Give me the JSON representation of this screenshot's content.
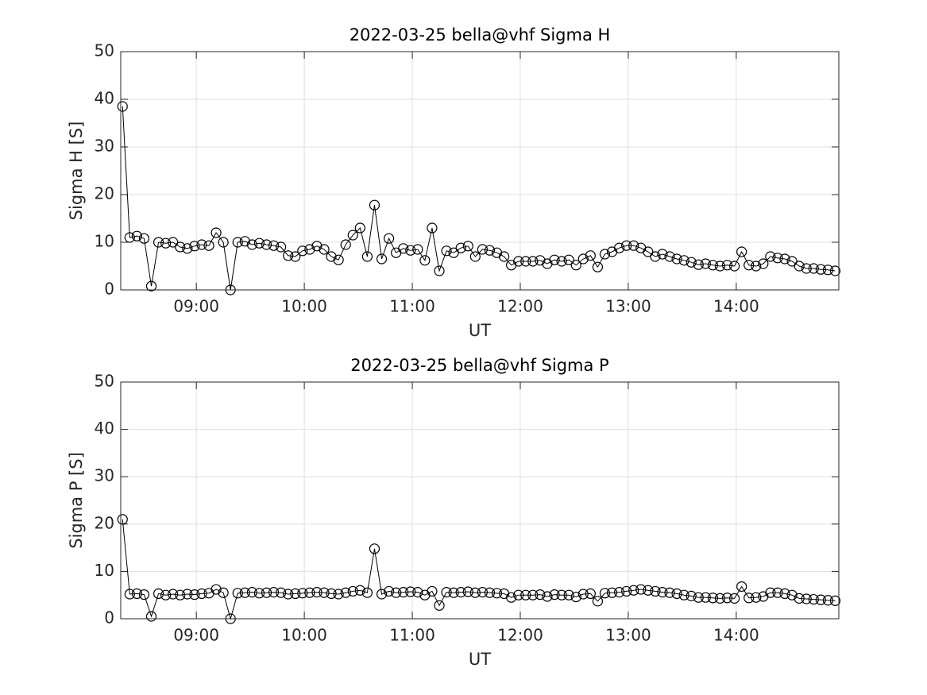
{
  "chart_data": [
    {
      "type": "line",
      "title": "2022-03-25  bella@vhf Sigma H",
      "xlabel": "UT",
      "ylabel": "Sigma H [S]",
      "color": "#000000",
      "marker": "o",
      "grid": true,
      "x": [
        "08:19",
        "08:23",
        "08:27",
        "08:31",
        "08:35",
        "08:39",
        "08:43",
        "08:47",
        "08:51",
        "08:55",
        "08:59",
        "09:03",
        "09:07",
        "09:11",
        "09:15",
        "09:19",
        "09:23",
        "09:27",
        "09:31",
        "09:35",
        "09:39",
        "09:43",
        "09:47",
        "09:51",
        "09:55",
        "09:59",
        "10:03",
        "10:07",
        "10:11",
        "10:15",
        "10:19",
        "10:23",
        "10:27",
        "10:31",
        "10:35",
        "10:39",
        "10:43",
        "10:47",
        "10:51",
        "10:55",
        "10:59",
        "11:03",
        "11:07",
        "11:11",
        "11:15",
        "11:19",
        "11:23",
        "11:27",
        "11:31",
        "11:35",
        "11:39",
        "11:43",
        "11:47",
        "11:51",
        "11:55",
        "11:59",
        "12:03",
        "12:07",
        "12:11",
        "12:15",
        "12:19",
        "12:23",
        "12:27",
        "12:31",
        "12:35",
        "12:39",
        "12:43",
        "12:47",
        "12:51",
        "12:55",
        "12:59",
        "13:03",
        "13:07",
        "13:11",
        "13:15",
        "13:19",
        "13:23",
        "13:27",
        "13:31",
        "13:35",
        "13:39",
        "13:43",
        "13:47",
        "13:51",
        "13:55",
        "13:59",
        "14:03",
        "14:07",
        "14:11",
        "14:15",
        "14:19",
        "14:23",
        "14:27",
        "14:31",
        "14:35",
        "14:39",
        "14:43",
        "14:47",
        "14:51",
        "14:55"
      ],
      "values": [
        38.5,
        11,
        11.3,
        10.8,
        0.8,
        10,
        9.8,
        10,
        9,
        8.7,
        9.2,
        9.5,
        9.3,
        12,
        10,
        0,
        10,
        10.2,
        9.5,
        9.8,
        9.5,
        9.3,
        9,
        7.2,
        7,
        8.2,
        8.5,
        9.2,
        8.5,
        7,
        6.3,
        9.5,
        11.5,
        13,
        7,
        17.8,
        6.5,
        10.8,
        7.8,
        8.7,
        8.3,
        8.5,
        6.2,
        13,
        4,
        8.2,
        7.8,
        8.8,
        9.2,
        7,
        8.5,
        8.3,
        7.8,
        7,
        5.2,
        6,
        6,
        6,
        6.2,
        5.5,
        6.3,
        6,
        6.3,
        5.2,
        6.5,
        7.2,
        4.8,
        7.5,
        8,
        8.8,
        9.3,
        9.3,
        8.8,
        8,
        7,
        7.5,
        7,
        6.5,
        6.2,
        5.8,
        5.3,
        5.5,
        5.2,
        5,
        5.2,
        5,
        8,
        5.2,
        5,
        5.5,
        7,
        6.7,
        6.5,
        6,
        5,
        4.5,
        4.5,
        4.3,
        4.2,
        4
      ],
      "xlim": [
        "08:18",
        "14:57"
      ],
      "xticks": [
        "09:00",
        "10:00",
        "11:00",
        "12:00",
        "13:00",
        "14:00"
      ],
      "ylim": [
        0,
        50
      ],
      "yticks": [
        0,
        10,
        20,
        30,
        40,
        50
      ]
    },
    {
      "type": "line",
      "title": "2022-03-25  bella@vhf Sigma P",
      "xlabel": "UT",
      "ylabel": "Sigma P [S]",
      "color": "#000000",
      "marker": "o",
      "grid": true,
      "x": [
        "08:19",
        "08:23",
        "08:27",
        "08:31",
        "08:35",
        "08:39",
        "08:43",
        "08:47",
        "08:51",
        "08:55",
        "08:59",
        "09:03",
        "09:07",
        "09:11",
        "09:15",
        "09:19",
        "09:23",
        "09:27",
        "09:31",
        "09:35",
        "09:39",
        "09:43",
        "09:47",
        "09:51",
        "09:55",
        "09:59",
        "10:03",
        "10:07",
        "10:11",
        "10:15",
        "10:19",
        "10:23",
        "10:27",
        "10:31",
        "10:35",
        "10:39",
        "10:43",
        "10:47",
        "10:51",
        "10:55",
        "10:59",
        "11:03",
        "11:07",
        "11:11",
        "11:15",
        "11:19",
        "11:23",
        "11:27",
        "11:31",
        "11:35",
        "11:39",
        "11:43",
        "11:47",
        "11:51",
        "11:55",
        "11:59",
        "12:03",
        "12:07",
        "12:11",
        "12:15",
        "12:19",
        "12:23",
        "12:27",
        "12:31",
        "12:35",
        "12:39",
        "12:43",
        "12:47",
        "12:51",
        "12:55",
        "12:59",
        "13:03",
        "13:07",
        "13:11",
        "13:15",
        "13:19",
        "13:23",
        "13:27",
        "13:31",
        "13:35",
        "13:39",
        "13:43",
        "13:47",
        "13:51",
        "13:55",
        "13:59",
        "14:03",
        "14:07",
        "14:11",
        "14:15",
        "14:19",
        "14:23",
        "14:27",
        "14:31",
        "14:35",
        "14:39",
        "14:43",
        "14:47",
        "14:51",
        "14:55"
      ],
      "values": [
        21,
        5.2,
        5.3,
        5.1,
        0.5,
        5.3,
        5,
        5.2,
        5,
        5.2,
        5.1,
        5.3,
        5.4,
        6.2,
        5.5,
        0,
        5.4,
        5.5,
        5.6,
        5.4,
        5.5,
        5.6,
        5.5,
        5.2,
        5.3,
        5.4,
        5.5,
        5.6,
        5.5,
        5.3,
        5.2,
        5.5,
        5.8,
        6,
        5.5,
        14.8,
        5.2,
        5.8,
        5.5,
        5.6,
        5.7,
        5.6,
        5,
        5.8,
        2.8,
        5.6,
        5.5,
        5.6,
        5.7,
        5.5,
        5.6,
        5.5,
        5.4,
        5.3,
        4.5,
        5,
        5,
        5,
        5.1,
        4.7,
        5.1,
        5,
        5,
        4.6,
        5.2,
        5.3,
        3.7,
        5.4,
        5.5,
        5.6,
        5.8,
        6,
        6.2,
        6,
        5.8,
        5.6,
        5.5,
        5.3,
        5,
        4.8,
        4.5,
        4.5,
        4.4,
        4.3,
        4.4,
        4.3,
        6.8,
        4.4,
        4.5,
        4.7,
        5.5,
        5.5,
        5.3,
        5,
        4.3,
        4.2,
        4.1,
        4,
        3.9,
        3.8
      ],
      "xlim": [
        "08:18",
        "14:57"
      ],
      "xticks": [
        "09:00",
        "10:00",
        "11:00",
        "12:00",
        "13:00",
        "14:00"
      ],
      "ylim": [
        0,
        50
      ],
      "yticks": [
        0,
        10,
        20,
        30,
        40,
        50
      ]
    }
  ]
}
